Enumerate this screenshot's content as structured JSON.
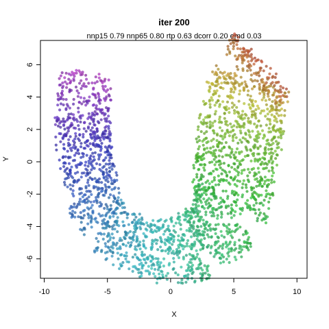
{
  "chart_data": {
    "type": "scatter",
    "title": "iter 200",
    "subtitle": "nnp15 0.79 nnp65 0.80 rtp 0.63 dcorr 0.20 emd 0.03",
    "xlabel": "X",
    "ylabel": "Y",
    "xlim": [
      -10.3,
      10.8
    ],
    "ylim": [
      -7.2,
      7.5
    ],
    "x_ticks": [
      -10,
      -5,
      0,
      5,
      10
    ],
    "y_ticks": [
      -6,
      -4,
      -2,
      0,
      2,
      4,
      6
    ],
    "x_tick_labels": [
      "-10",
      "-5",
      "0",
      "5",
      "10"
    ],
    "y_tick_labels": [
      "-6",
      "-4",
      "-2",
      "0",
      "2",
      "4",
      "6"
    ],
    "grid": false,
    "legend": "none",
    "marker_alpha": 0.75,
    "color_scale": "rainbow hue along manifold: magenta/purple (top-left) → blue → cyan (bottom) → green → yellow → red/brown (top-right)",
    "n_points_approx": 2500,
    "manifold_path": [
      {
        "x": -6.6,
        "y": 5.5,
        "hue": 292
      },
      {
        "x": -7.0,
        "y": 3.0,
        "hue": 262
      },
      {
        "x": -6.7,
        "y": 0.5,
        "hue": 238
      },
      {
        "x": -6.3,
        "y": -1.8,
        "hue": 222
      },
      {
        "x": -5.4,
        "y": -3.8,
        "hue": 205
      },
      {
        "x": -3.0,
        "y": -5.1,
        "hue": 190
      },
      {
        "x": 0.0,
        "y": -5.6,
        "hue": 172
      },
      {
        "x": 2.6,
        "y": -5.0,
        "hue": 150
      },
      {
        "x": 4.6,
        "y": -3.0,
        "hue": 130
      },
      {
        "x": 5.2,
        "y": -0.3,
        "hue": 110
      },
      {
        "x": 5.6,
        "y": 2.5,
        "hue": 80
      },
      {
        "x": 6.3,
        "y": 5.1,
        "hue": 40
      },
      {
        "x": 7.2,
        "y": 6.2,
        "hue": 12
      }
    ],
    "band_halfwidth": [
      2.0,
      2.1,
      2.2,
      2.1,
      1.9,
      1.8,
      2.0,
      2.4,
      3.0,
      3.3,
      3.3,
      3.1,
      2.8
    ]
  }
}
